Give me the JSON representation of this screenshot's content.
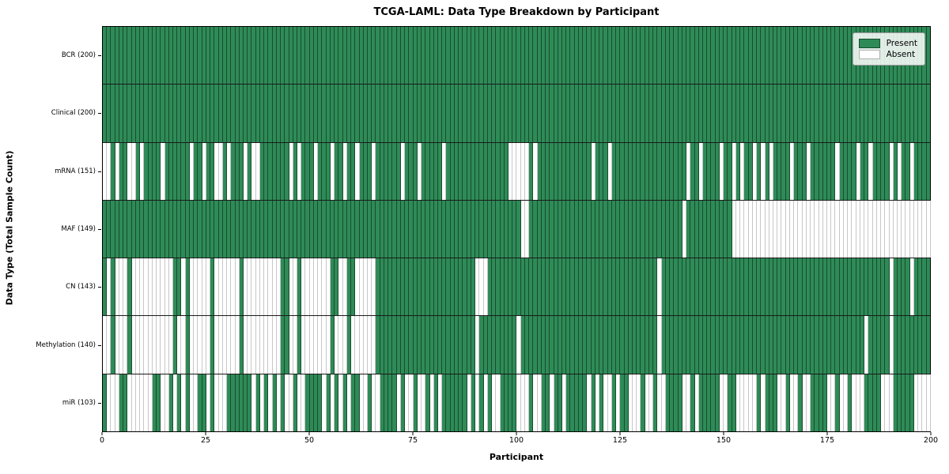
{
  "chart_data": {
    "type": "heatmap",
    "title": "TCGA-LAML: Data Type Breakdown by Participant",
    "xlabel": "Participant",
    "ylabel": "Data Type (Total Sample Count)",
    "x_ticks": [
      0,
      25,
      50,
      75,
      100,
      125,
      150,
      175,
      200
    ],
    "n_participants": 200,
    "x_range": [
      0,
      200
    ],
    "grid": "row-dividers-on",
    "legend": {
      "position": "upper-right",
      "present_label": "Present",
      "absent_label": "Absent"
    },
    "colors": {
      "present": "#2e8b57",
      "absent": "#ffffff",
      "present_edge": "rgba(0,0,0,0.45)",
      "absent_edge": "rgba(0,0,0,0.22)",
      "row_divider": "#1a1a1a",
      "text": "#000000"
    },
    "rows": [
      {
        "label": "BCR (200)",
        "data_type": "BCR",
        "total_present": 200,
        "absent_runs": []
      },
      {
        "label": "Clinical (200)",
        "data_type": "Clinical",
        "total_present": 200,
        "absent_runs": []
      },
      {
        "label": "mRNA (151)",
        "data_type": "mRNA",
        "total_present": 151,
        "absent_runs": [
          [
            0,
            1
          ],
          [
            3,
            3
          ],
          [
            6,
            7
          ],
          [
            9,
            9
          ],
          [
            14,
            14
          ],
          [
            21,
            21
          ],
          [
            24,
            24
          ],
          [
            27,
            28
          ],
          [
            30,
            30
          ],
          [
            34,
            34
          ],
          [
            36,
            37
          ],
          [
            45,
            45
          ],
          [
            47,
            47
          ],
          [
            51,
            51
          ],
          [
            55,
            55
          ],
          [
            58,
            58
          ],
          [
            61,
            61
          ],
          [
            65,
            65
          ],
          [
            72,
            72
          ],
          [
            76,
            76
          ],
          [
            82,
            82
          ],
          [
            98,
            102
          ],
          [
            104,
            104
          ],
          [
            118,
            118
          ],
          [
            122,
            122
          ],
          [
            141,
            141
          ],
          [
            144,
            144
          ],
          [
            149,
            149
          ],
          [
            152,
            152
          ],
          [
            154,
            154
          ],
          [
            157,
            157
          ],
          [
            159,
            159
          ],
          [
            161,
            161
          ],
          [
            166,
            166
          ],
          [
            170,
            170
          ],
          [
            177,
            177
          ],
          [
            182,
            182
          ],
          [
            185,
            185
          ],
          [
            190,
            190
          ],
          [
            192,
            192
          ],
          [
            195,
            195
          ]
        ]
      },
      {
        "label": "MAF (149)",
        "data_type": "MAF",
        "total_present": 149,
        "absent_runs": [
          [
            101,
            102
          ],
          [
            140,
            140
          ],
          [
            152,
            199
          ]
        ]
      },
      {
        "label": "CN (143)",
        "data_type": "CN",
        "total_present": 143,
        "absent_runs": [
          [
            1,
            1
          ],
          [
            3,
            5
          ],
          [
            7,
            16
          ],
          [
            19,
            19
          ],
          [
            21,
            25
          ],
          [
            27,
            32
          ],
          [
            34,
            42
          ],
          [
            45,
            46
          ],
          [
            48,
            54
          ],
          [
            57,
            58
          ],
          [
            61,
            65
          ],
          [
            90,
            92
          ],
          [
            134,
            134
          ],
          [
            190,
            190
          ],
          [
            195,
            195
          ]
        ]
      },
      {
        "label": "Methylation (140)",
        "data_type": "Methylation",
        "total_present": 140,
        "absent_runs": [
          [
            0,
            1
          ],
          [
            3,
            5
          ],
          [
            7,
            16
          ],
          [
            18,
            19
          ],
          [
            21,
            25
          ],
          [
            27,
            32
          ],
          [
            34,
            42
          ],
          [
            45,
            46
          ],
          [
            48,
            54
          ],
          [
            56,
            58
          ],
          [
            60,
            65
          ],
          [
            90,
            90
          ],
          [
            100,
            100
          ],
          [
            134,
            134
          ],
          [
            184,
            184
          ],
          [
            190,
            190
          ]
        ]
      },
      {
        "label": "miR (103)",
        "data_type": "miR",
        "total_present": 103,
        "absent_runs": [
          [
            1,
            3
          ],
          [
            6,
            11
          ],
          [
            14,
            15
          ],
          [
            17,
            17
          ],
          [
            19,
            19
          ],
          [
            21,
            22
          ],
          [
            25,
            25
          ],
          [
            27,
            29
          ],
          [
            36,
            36
          ],
          [
            38,
            38
          ],
          [
            40,
            40
          ],
          [
            42,
            42
          ],
          [
            44,
            45
          ],
          [
            47,
            48
          ],
          [
            53,
            53
          ],
          [
            55,
            55
          ],
          [
            57,
            57
          ],
          [
            59,
            59
          ],
          [
            62,
            63
          ],
          [
            65,
            66
          ],
          [
            71,
            71
          ],
          [
            73,
            74
          ],
          [
            76,
            77
          ],
          [
            79,
            79
          ],
          [
            81,
            81
          ],
          [
            88,
            88
          ],
          [
            90,
            90
          ],
          [
            92,
            92
          ],
          [
            94,
            95
          ],
          [
            100,
            102
          ],
          [
            104,
            105
          ],
          [
            108,
            108
          ],
          [
            111,
            111
          ],
          [
            117,
            117
          ],
          [
            119,
            119
          ],
          [
            121,
            122
          ],
          [
            124,
            124
          ],
          [
            127,
            129
          ],
          [
            131,
            132
          ],
          [
            134,
            135
          ],
          [
            140,
            141
          ],
          [
            143,
            143
          ],
          [
            149,
            150
          ],
          [
            153,
            157
          ],
          [
            159,
            159
          ],
          [
            163,
            164
          ],
          [
            166,
            167
          ],
          [
            169,
            170
          ],
          [
            175,
            176
          ],
          [
            178,
            179
          ],
          [
            181,
            183
          ],
          [
            188,
            190
          ],
          [
            196,
            199
          ]
        ]
      }
    ]
  }
}
